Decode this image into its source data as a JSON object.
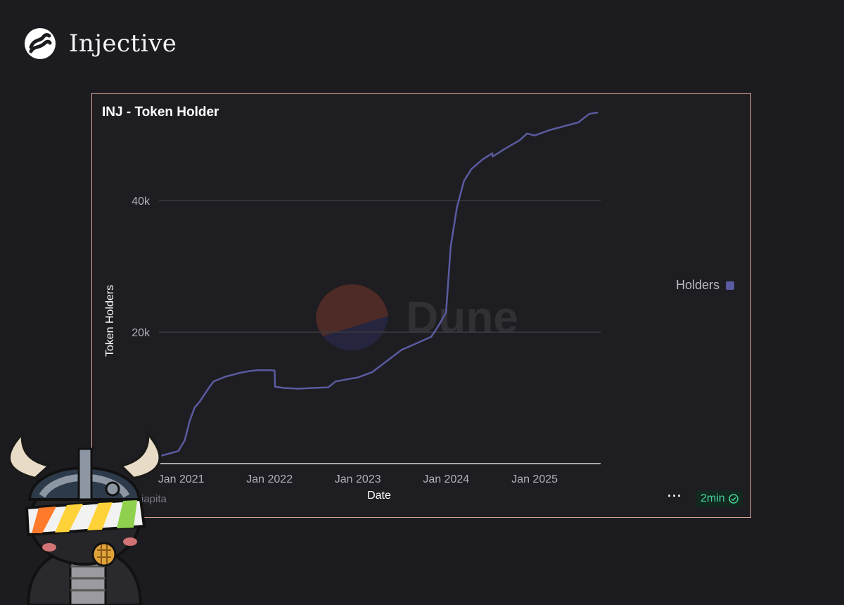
{
  "brand": {
    "name": "Injective",
    "icon": "injective-logo-icon"
  },
  "card": {
    "title": "INJ - Token Holder",
    "author": "iapita",
    "more_label": "···",
    "refresh_label": "2min",
    "refresh_icon": "check-circle-icon",
    "watermark": "Dune"
  },
  "colors": {
    "series": "#5a5ba0",
    "border": "#d9a89a",
    "background": "#1c1b1f",
    "refresh": "#44d39a"
  },
  "chart_data": {
    "type": "line",
    "title": "INJ - Token Holder",
    "xlabel": "Date",
    "ylabel": "Token Holders",
    "xlim": [
      "2020-10-01",
      "2025-10-01"
    ],
    "ylim": [
      0,
      52000
    ],
    "yticks": [
      20000,
      40000
    ],
    "ytick_labels": [
      "20k",
      "40k"
    ],
    "xticks": [
      "2021-01-01",
      "2022-01-01",
      "2023-01-01",
      "2024-01-01",
      "2025-01-01"
    ],
    "xtick_labels": [
      "Jan 2021",
      "Jan 2022",
      "Jan 2023",
      "Jan 2024",
      "Jan 2025"
    ],
    "grid": true,
    "legend": "right",
    "series": [
      {
        "name": "Holders",
        "color": "#5a5ba0",
        "points": [
          [
            "2020-10-10",
            1200
          ],
          [
            "2020-11-20",
            1600
          ],
          [
            "2020-12-20",
            1900
          ],
          [
            "2021-01-15",
            3500
          ],
          [
            "2021-02-05",
            6500
          ],
          [
            "2021-02-25",
            8500
          ],
          [
            "2021-03-20",
            9500
          ],
          [
            "2021-04-25",
            11500
          ],
          [
            "2021-05-15",
            12500
          ],
          [
            "2021-07-01",
            13200
          ],
          [
            "2021-09-01",
            13800
          ],
          [
            "2021-10-15",
            14100
          ],
          [
            "2021-11-15",
            14200
          ],
          [
            "2022-01-01",
            14200
          ],
          [
            "2022-01-22",
            14150
          ],
          [
            "2022-01-24",
            11700
          ],
          [
            "2022-03-01",
            11500
          ],
          [
            "2022-05-01",
            11400
          ],
          [
            "2022-07-01",
            11500
          ],
          [
            "2022-09-01",
            11600
          ],
          [
            "2022-10-01",
            12500
          ],
          [
            "2022-12-01",
            12900
          ],
          [
            "2023-01-01",
            13100
          ],
          [
            "2023-03-01",
            13900
          ],
          [
            "2023-05-01",
            15600
          ],
          [
            "2023-07-01",
            17300
          ],
          [
            "2023-09-01",
            18300
          ],
          [
            "2023-11-01",
            19300
          ],
          [
            "2023-12-01",
            21000
          ],
          [
            "2024-01-01",
            23000
          ],
          [
            "2024-01-20",
            33000
          ],
          [
            "2024-02-15",
            39000
          ],
          [
            "2024-03-15",
            43000
          ],
          [
            "2024-04-15",
            44800
          ],
          [
            "2024-06-01",
            46300
          ],
          [
            "2024-07-10",
            47200
          ],
          [
            "2024-07-12",
            46700
          ],
          [
            "2024-09-01",
            47900
          ],
          [
            "2024-11-01",
            49200
          ],
          [
            "2024-12-01",
            50200
          ],
          [
            "2025-01-01",
            49900
          ],
          [
            "2025-03-01",
            50700
          ],
          [
            "2025-05-01",
            51300
          ],
          [
            "2025-07-01",
            51900
          ],
          [
            "2025-08-15",
            53200
          ],
          [
            "2025-09-20",
            53400
          ]
        ]
      }
    ]
  }
}
